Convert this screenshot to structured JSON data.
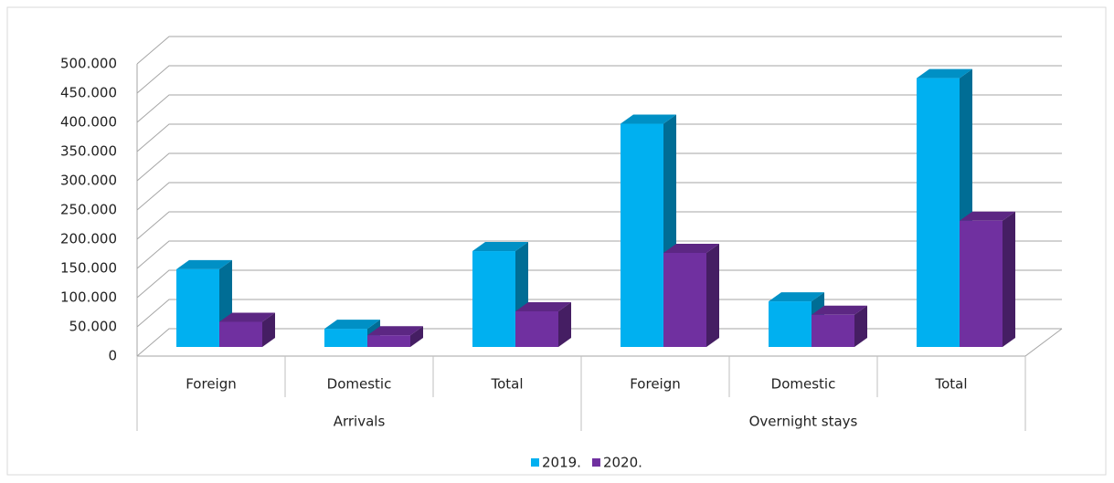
{
  "chart_data": {
    "type": "bar3d",
    "groups": [
      {
        "label": "Arrivals",
        "categories": [
          "Foreign",
          "Domestic",
          "Total"
        ]
      },
      {
        "label": "Overnight stays",
        "categories": [
          "Foreign",
          "Domestic",
          "Total"
        ]
      }
    ],
    "series": [
      {
        "name": "2019.",
        "color": "#00b0f0",
        "values": [
          133000,
          31000,
          164000,
          382000,
          78000,
          460000
        ]
      },
      {
        "name": "2020.",
        "color": "#7030a0",
        "values": [
          43000,
          20000,
          61000,
          161000,
          55000,
          216000
        ]
      }
    ],
    "ylim": [
      0,
      500000
    ],
    "yticks": [
      0,
      {
        "value": 50000,
        "label": "50.000"
      },
      {
        "value": 100000,
        "label": "100.000"
      },
      {
        "value": 150000,
        "label": "150.000"
      },
      {
        "value": 200000,
        "label": "200.000"
      },
      {
        "value": 250000,
        "label": "250.000"
      },
      {
        "value": 300000,
        "label": "300.000"
      },
      {
        "value": 350000,
        "label": "350.000"
      },
      {
        "value": 400000,
        "label": "400.000"
      },
      {
        "value": 450000,
        "label": "450.000"
      },
      {
        "value": 500000,
        "label": "500.000"
      }
    ],
    "grid": true,
    "legend": "bottom"
  }
}
